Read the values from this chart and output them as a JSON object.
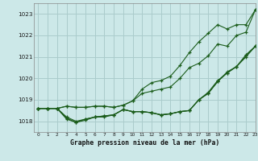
{
  "title": "Graphe pression niveau de la mer (hPa)",
  "background_color": "#cce8e8",
  "grid_color": "#aacccc",
  "line_color": "#1a5c1a",
  "xlim": [
    -0.5,
    23
  ],
  "ylim": [
    1017.5,
    1023.5
  ],
  "yticks": [
    1018,
    1019,
    1020,
    1021,
    1022,
    1023
  ],
  "xticks": [
    0,
    1,
    2,
    3,
    4,
    5,
    6,
    7,
    8,
    9,
    10,
    11,
    12,
    13,
    14,
    15,
    16,
    17,
    18,
    19,
    20,
    21,
    22,
    23
  ],
  "series_lower": [
    [
      1018.6,
      1018.6,
      1018.6,
      1018.1,
      1017.95,
      1018.1,
      1018.2,
      1018.25,
      1018.3,
      1018.55,
      1018.45,
      1018.45,
      1018.4,
      1018.3,
      1018.35,
      1018.45,
      1018.5,
      1019.0,
      1019.3,
      1019.85,
      1020.25,
      1020.55,
      1021.0,
      1021.5
    ],
    [
      1018.6,
      1018.6,
      1018.6,
      1018.15,
      1017.95,
      1018.05,
      1018.2,
      1018.2,
      1018.3,
      1018.55,
      1018.45,
      1018.45,
      1018.4,
      1018.3,
      1018.35,
      1018.45,
      1018.5,
      1019.0,
      1019.3,
      1019.85,
      1020.3,
      1020.55,
      1021.1,
      1021.5
    ],
    [
      1018.6,
      1018.6,
      1018.6,
      1018.2,
      1018.0,
      1018.1,
      1018.2,
      1018.25,
      1018.3,
      1018.55,
      1018.45,
      1018.45,
      1018.4,
      1018.3,
      1018.35,
      1018.45,
      1018.5,
      1019.0,
      1019.35,
      1019.9,
      1020.25,
      1020.55,
      1021.05,
      1021.5
    ]
  ],
  "series_upper": [
    1018.6,
    1018.6,
    1018.6,
    1018.7,
    1018.65,
    1018.65,
    1018.7,
    1018.7,
    1018.65,
    1018.75,
    1018.95,
    1019.3,
    1019.4,
    1019.5,
    1019.6,
    1020.0,
    1020.5,
    1020.7,
    1021.05,
    1021.6,
    1021.5,
    1022.0,
    1022.15,
    1023.2
  ],
  "series_top": [
    1018.6,
    1018.6,
    1018.6,
    1018.7,
    1018.65,
    1018.65,
    1018.7,
    1018.7,
    1018.65,
    1018.75,
    1018.95,
    1019.5,
    1019.8,
    1019.9,
    1020.1,
    1020.6,
    1021.2,
    1021.7,
    1022.1,
    1022.5,
    1022.3,
    1022.5,
    1022.5,
    1023.2
  ]
}
